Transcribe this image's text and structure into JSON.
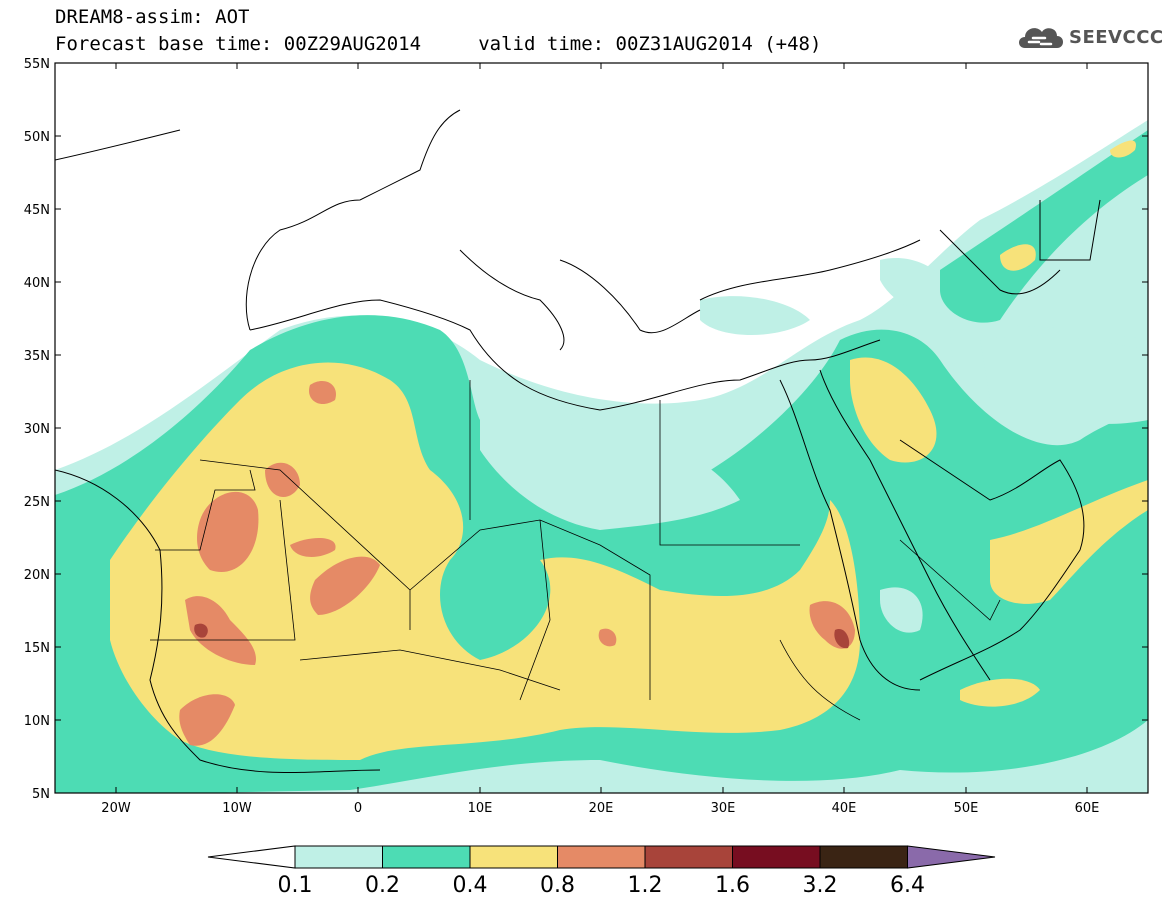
{
  "title": {
    "line1": "DREAM8-assim: AOT",
    "line2": "Forecast base time: 00Z29AUG2014     valid time: 00Z31AUG2014 (+48)"
  },
  "logo": {
    "text": "SEEVCCC",
    "icon": "cloud-icon"
  },
  "map": {
    "lat_labels": [
      "55N",
      "50N",
      "45N",
      "40N",
      "35N",
      "30N",
      "25N",
      "20N",
      "15N",
      "10N",
      "5N"
    ],
    "lon_labels": [
      "20W",
      "10W",
      "0",
      "10E",
      "20E",
      "30E",
      "40E",
      "50E",
      "60E"
    ]
  },
  "colorbar": {
    "labels": [
      "0.1",
      "0.2",
      "0.4",
      "0.8",
      "1.2",
      "1.6",
      "3.2",
      "6.4"
    ],
    "colors": [
      "#ffffff",
      "#bff0e6",
      "#4ddcb4",
      "#f7e27a",
      "#e58a66",
      "#a8443a",
      "#770d20",
      "#3a2414",
      "#8a6aaa"
    ]
  },
  "palette": {
    "c01": "#bff0e6",
    "c02": "#4ddcb4",
    "c04": "#f7e27a",
    "c08": "#e58a66",
    "c12": "#a8443a",
    "c16": "#770d20"
  }
}
